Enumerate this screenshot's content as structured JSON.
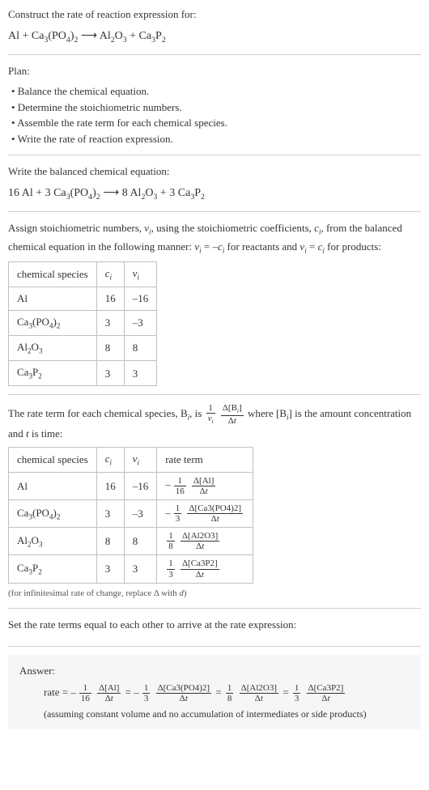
{
  "section1": {
    "title": "Construct the rate of reaction expression for:",
    "equation_lhs1": "Al + Ca",
    "equation_lhs2": "(PO",
    "equation_lhs3": ")",
    "equation_rhs1": "Al",
    "equation_rhs2": "O",
    "equation_rhs3": " + Ca",
    "equation_rhs4": "P",
    "sub3": "3",
    "sub4": "4",
    "sub2": "2"
  },
  "section2": {
    "title": "Plan:",
    "b1": "• Balance the chemical equation.",
    "b2": "• Determine the stoichiometric numbers.",
    "b3": "• Assemble the rate term for each chemical species.",
    "b4": "• Write the rate of reaction expression."
  },
  "section3": {
    "title": "Write the balanced chemical equation:",
    "c_16": "16 Al + 3 Ca",
    "c_po": "(PO",
    "c_close": ")",
    "c_rhs": "8 Al",
    "c_o": "O",
    "c_ca": " + 3 Ca",
    "c_p": "P"
  },
  "section4": {
    "p1a": "Assign stoichiometric numbers, ",
    "nu": "ν",
    "sub_i": "i",
    "p1b": ", using the stoichiometric coefficients, ",
    "c": "c",
    "p1c": ", from the balanced chemical equation in the following manner: ",
    "eq_react": " = –",
    "p1d": " for reactants and ",
    "eq_prod": " = ",
    "p1e": " for products:",
    "h_species": "chemical species",
    "h_c": "c",
    "h_nu": "ν",
    "rows": [
      {
        "sp_a": "Al",
        "sp_b": "",
        "c": "16",
        "nu": "–16"
      },
      {
        "sp_a": "Ca",
        "sp_b": "(PO",
        "sp_c": ")",
        "c": "3",
        "nu": "–3"
      },
      {
        "sp_a": "Al",
        "sp_b": "O",
        "c": "8",
        "nu": "8"
      },
      {
        "sp_a": "Ca",
        "sp_b": "P",
        "c": "3",
        "nu": "3"
      }
    ]
  },
  "section5": {
    "p_a": "The rate term for each chemical species, B",
    "p_b": ", is ",
    "p_c": " where [B",
    "p_d": "] is the amount concentration and ",
    "t": "t",
    "p_e": " is time:",
    "frac1_top": "1",
    "frac1_bot_nu": "ν",
    "frac2_top_d": "Δ[B",
    "frac2_top_end": "]",
    "frac2_bot": "Δt",
    "h_species": "chemical species",
    "h_c": "c",
    "h_nu": "ν",
    "h_rate": "rate term",
    "rows": [
      {
        "sp_a": "Al",
        "c": "16",
        "nu": "–16",
        "sign": "–",
        "f1t": "1",
        "f1b": "16",
        "f2t": "Δ[Al]",
        "f2b": "Δt"
      },
      {
        "sp_a": "Ca",
        "sp_b": "(PO",
        "sp_c": ")",
        "c": "3",
        "nu": "–3",
        "sign": "–",
        "f1t": "1",
        "f1b": "3",
        "f2t": "Δ[Ca3(PO4)2]",
        "f2b": "Δt"
      },
      {
        "sp_a": "Al",
        "sp_b": "O",
        "c": "8",
        "nu": "8",
        "sign": "",
        "f1t": "1",
        "f1b": "8",
        "f2t": "Δ[Al2O3]",
        "f2b": "Δt"
      },
      {
        "sp_a": "Ca",
        "sp_b": "P",
        "c": "3",
        "nu": "3",
        "sign": "",
        "f1t": "1",
        "f1b": "3",
        "f2t": "Δ[Ca3P2]",
        "f2b": "Δt"
      }
    ],
    "note": "(for infinitesimal rate of change, replace Δ with d)"
  },
  "section6": {
    "title": "Set the rate terms equal to each other to arrive at the rate expression:"
  },
  "answer": {
    "label": "Answer:",
    "rate_label": "rate = ",
    "terms": [
      {
        "sign": "–",
        "f1t": "1",
        "f1b": "16",
        "f2t": "Δ[Al]",
        "f2b": "Δt"
      },
      {
        "sign": "–",
        "f1t": "1",
        "f1b": "3",
        "f2t": "Δ[Ca3(PO4)2]",
        "f2b": "Δt"
      },
      {
        "sign": "",
        "f1t": "1",
        "f1b": "8",
        "f2t": "Δ[Al2O3]",
        "f2b": "Δt"
      },
      {
        "sign": "",
        "f1t": "1",
        "f1b": "3",
        "f2t": "Δ[Ca3P2]",
        "f2b": "Δt"
      }
    ],
    "eq": " = ",
    "note": "(assuming constant volume and no accumulation of intermediates or side products)"
  },
  "subs": {
    "s2": "2",
    "s3": "3",
    "s4": "4",
    "si": "i"
  }
}
